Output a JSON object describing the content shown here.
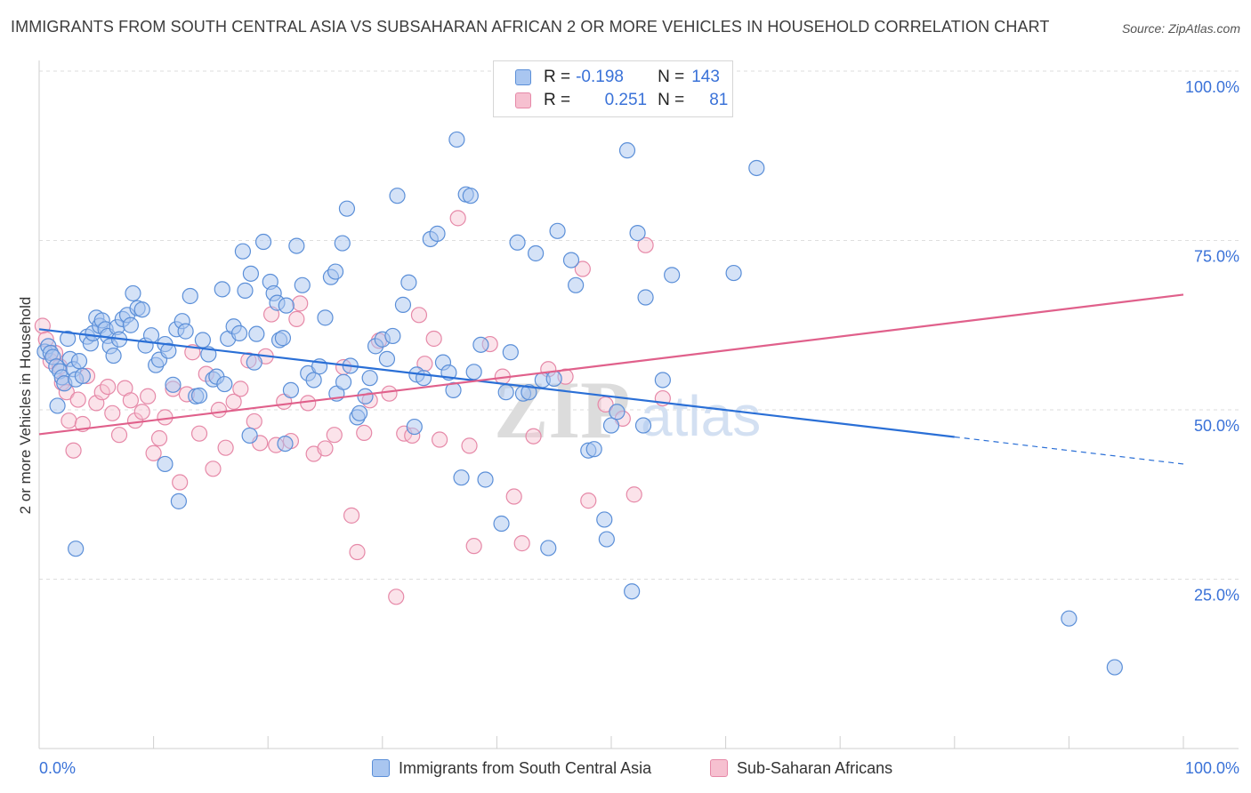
{
  "title": "IMMIGRANTS FROM SOUTH CENTRAL ASIA VS SUBSAHARAN AFRICAN 2 OR MORE VEHICLES IN HOUSEHOLD CORRELATION CHART",
  "source": "Source: ZipAtlas.com",
  "watermark": {
    "zip": "ZIP",
    "atlas": "atlas"
  },
  "legend_stats": {
    "r_label": "R =",
    "n_label": "N =",
    "rows": [
      {
        "r": "-0.198",
        "n": "143"
      },
      {
        "r": "0.251",
        "n": "81"
      }
    ]
  },
  "colors": {
    "blue_fill": "#a9c6f0",
    "blue_stroke": "#5b8fd8",
    "blue_line": "#2a6fd6",
    "pink_fill": "#f6c0d0",
    "pink_stroke": "#e689a8",
    "pink_line": "#e0608b",
    "axis_label": "#3a72d8"
  },
  "chart_data": {
    "type": "scatter",
    "title": "IMMIGRANTS FROM SOUTH CENTRAL ASIA VS SUBSAHARAN AFRICAN 2 OR MORE VEHICLES IN HOUSEHOLD CORRELATION CHART",
    "xlabel": "",
    "ylabel": "2 or more Vehicles in Household",
    "xlim": [
      0,
      100
    ],
    "ylim": [
      0,
      100
    ],
    "x_tick_labels": [
      "0.0%",
      "100.0%"
    ],
    "y_ticks": [
      25,
      50,
      75,
      100
    ],
    "y_tick_labels": [
      "25.0%",
      "50.0%",
      "75.0%",
      "100.0%"
    ],
    "grid": "horizontal dashed",
    "legend": "bottom-center",
    "series": [
      {
        "name": "Immigrants from South Central Asia",
        "r": -0.198,
        "n": 143,
        "trend": {
          "x0": 0,
          "y0": 61.9,
          "x1": 80,
          "y1": 46.0,
          "dashed_to_x": 100,
          "dashed_to_y": 42.0
        },
        "points": [
          [
            0.5,
            58.6
          ],
          [
            0.8,
            59.4
          ],
          [
            1,
            58.4
          ],
          [
            1.2,
            57.8
          ],
          [
            1.5,
            56.4
          ],
          [
            1.8,
            55.7
          ],
          [
            2,
            54.8
          ],
          [
            2.2,
            53.9
          ],
          [
            1.6,
            50.6
          ],
          [
            2.5,
            60.5
          ],
          [
            2.7,
            57.5
          ],
          [
            3,
            56
          ],
          [
            3.2,
            54.5
          ],
          [
            3.5,
            57.2
          ],
          [
            3.8,
            55
          ],
          [
            4.2,
            60.8
          ],
          [
            4.5,
            59.8
          ],
          [
            4.7,
            61.3
          ],
          [
            5,
            63.6
          ],
          [
            5.3,
            62.4
          ],
          [
            5.5,
            63.2
          ],
          [
            5.8,
            61.9
          ],
          [
            6,
            60.9
          ],
          [
            6.2,
            59.4
          ],
          [
            6.5,
            58
          ],
          [
            6.8,
            62.2
          ],
          [
            7,
            60.4
          ],
          [
            7.3,
            63.4
          ],
          [
            7.7,
            64
          ],
          [
            8,
            62.5
          ],
          [
            8.2,
            67.2
          ],
          [
            8.6,
            65
          ],
          [
            9,
            64.8
          ],
          [
            9.3,
            59.5
          ],
          [
            9.8,
            61
          ],
          [
            10.2,
            56.6
          ],
          [
            10.5,
            57.4
          ],
          [
            11,
            59.7
          ],
          [
            11.3,
            58.7
          ],
          [
            11.7,
            53.7
          ],
          [
            12,
            61.9
          ],
          [
            12.5,
            63.1
          ],
          [
            12.8,
            61.6
          ],
          [
            13.2,
            66.8
          ],
          [
            13.7,
            52
          ],
          [
            14,
            52.1
          ],
          [
            14.3,
            60.3
          ],
          [
            14.8,
            58.2
          ],
          [
            15.2,
            54.5
          ],
          [
            15.5,
            54.9
          ],
          [
            16,
            67.8
          ],
          [
            16.2,
            53.8
          ],
          [
            16.5,
            60.5
          ],
          [
            17,
            62.3
          ],
          [
            17.5,
            61.3
          ],
          [
            17.8,
            73.4
          ],
          [
            18,
            67.6
          ],
          [
            18.5,
            70.1
          ],
          [
            18.8,
            57
          ],
          [
            19,
            61.2
          ],
          [
            19.6,
            74.8
          ],
          [
            20.2,
            68.9
          ],
          [
            20.5,
            67.2
          ],
          [
            20.8,
            65.8
          ],
          [
            21,
            60.3
          ],
          [
            21.3,
            60.6
          ],
          [
            21.6,
            65.4
          ],
          [
            22,
            52.9
          ],
          [
            22.5,
            74.2
          ],
          [
            23,
            68.4
          ],
          [
            23.5,
            55.4
          ],
          [
            24,
            54.4
          ],
          [
            24.5,
            56.4
          ],
          [
            25,
            63.6
          ],
          [
            25.5,
            69.6
          ],
          [
            25.9,
            70.4
          ],
          [
            26,
            52.4
          ],
          [
            26.5,
            74.6
          ],
          [
            26.9,
            79.7
          ],
          [
            27.2,
            56.5
          ],
          [
            27.8,
            48.9
          ],
          [
            28,
            49.5
          ],
          [
            28.5,
            52
          ],
          [
            28.9,
            54.7
          ],
          [
            29.4,
            59.4
          ],
          [
            30,
            60.4
          ],
          [
            30.4,
            57.5
          ],
          [
            30.9,
            60.9
          ],
          [
            31.3,
            81.6
          ],
          [
            31.8,
            65.5
          ],
          [
            32.3,
            68.8
          ],
          [
            32.8,
            47.5
          ],
          [
            33,
            55.2
          ],
          [
            33.6,
            54.7
          ],
          [
            34.2,
            75.2
          ],
          [
            34.8,
            76
          ],
          [
            35.3,
            57
          ],
          [
            35.8,
            55.5
          ],
          [
            36.2,
            52.9
          ],
          [
            36.5,
            89.9
          ],
          [
            36.9,
            40
          ],
          [
            37.3,
            81.8
          ],
          [
            37.7,
            81.6
          ],
          [
            38,
            55.6
          ],
          [
            38.6,
            59.6
          ],
          [
            39,
            39.7
          ],
          [
            40.4,
            33.2
          ],
          [
            40.8,
            52.6
          ],
          [
            41.2,
            58.5
          ],
          [
            41.8,
            74.7
          ],
          [
            42.3,
            52.4
          ],
          [
            42.8,
            52.6
          ],
          [
            43.4,
            73.1
          ],
          [
            44,
            54.4
          ],
          [
            44.5,
            29.6
          ],
          [
            45,
            54.6
          ],
          [
            45.3,
            76.4
          ],
          [
            46.5,
            72.1
          ],
          [
            46.9,
            68.4
          ],
          [
            48,
            44
          ],
          [
            48.5,
            44.2
          ],
          [
            49.4,
            33.8
          ],
          [
            49.6,
            30.9
          ],
          [
            50,
            47.7
          ],
          [
            50.5,
            49.7
          ],
          [
            51.4,
            88.3
          ],
          [
            51.8,
            23.2
          ],
          [
            52.3,
            76.1
          ],
          [
            52.8,
            47.7
          ],
          [
            53,
            66.6
          ],
          [
            54.5,
            54.4
          ],
          [
            55.3,
            69.9
          ],
          [
            60.7,
            70.2
          ],
          [
            62.7,
            85.7
          ],
          [
            90,
            19.2
          ],
          [
            94,
            12
          ],
          [
            3.2,
            29.5
          ],
          [
            11,
            42
          ],
          [
            12.2,
            36.5
          ],
          [
            18.4,
            46.2
          ],
          [
            21.5,
            45
          ],
          [
            26.6,
            54.1
          ]
        ]
      },
      {
        "name": "Sub-Saharan Africans",
        "r": 0.251,
        "n": 81,
        "trend": {
          "x0": 0,
          "y0": 46.4,
          "x1": 100,
          "y1": 67.0
        },
        "points": [
          [
            0.3,
            62.4
          ],
          [
            0.6,
            60.4
          ],
          [
            1,
            57.2
          ],
          [
            1.4,
            58.4
          ],
          [
            1.8,
            56.4
          ],
          [
            2,
            54
          ],
          [
            2.4,
            52.6
          ],
          [
            2.6,
            48.4
          ],
          [
            3,
            44
          ],
          [
            3.4,
            51.5
          ],
          [
            3.8,
            47.9
          ],
          [
            4.2,
            55
          ],
          [
            5,
            51
          ],
          [
            5.5,
            52.6
          ],
          [
            6,
            53.4
          ],
          [
            6.4,
            49.5
          ],
          [
            7,
            46.3
          ],
          [
            7.5,
            53.2
          ],
          [
            8,
            51.4
          ],
          [
            8.4,
            48.4
          ],
          [
            9,
            49.7
          ],
          [
            9.5,
            52
          ],
          [
            10,
            43.6
          ],
          [
            10.5,
            45.8
          ],
          [
            11,
            48.9
          ],
          [
            11.7,
            53.1
          ],
          [
            12.3,
            39.3
          ],
          [
            12.9,
            52.3
          ],
          [
            13.4,
            58.5
          ],
          [
            14,
            46.5
          ],
          [
            14.6,
            55.3
          ],
          [
            15.2,
            41.3
          ],
          [
            15.7,
            50
          ],
          [
            16.3,
            44.4
          ],
          [
            17,
            51.2
          ],
          [
            17.6,
            53.1
          ],
          [
            18.3,
            57.3
          ],
          [
            18.8,
            48.3
          ],
          [
            19.3,
            45.1
          ],
          [
            19.8,
            57.9
          ],
          [
            20.3,
            64.1
          ],
          [
            20.7,
            44.8
          ],
          [
            21.4,
            51.2
          ],
          [
            22,
            45.4
          ],
          [
            22.5,
            63.4
          ],
          [
            22.8,
            65.7
          ],
          [
            23.5,
            51
          ],
          [
            24,
            43.5
          ],
          [
            25,
            44.3
          ],
          [
            25.8,
            46.3
          ],
          [
            26.6,
            56.3
          ],
          [
            27.3,
            34.4
          ],
          [
            27.8,
            29
          ],
          [
            28.4,
            46.6
          ],
          [
            28.9,
            51.4
          ],
          [
            29.7,
            60.2
          ],
          [
            30.6,
            52.4
          ],
          [
            31.2,
            22.4
          ],
          [
            31.9,
            46.5
          ],
          [
            32.6,
            46.2
          ],
          [
            33.2,
            64
          ],
          [
            33.7,
            56.8
          ],
          [
            34.5,
            60.5
          ],
          [
            35,
            45.6
          ],
          [
            36.6,
            78.3
          ],
          [
            37.6,
            44.7
          ],
          [
            38,
            29.9
          ],
          [
            39.4,
            59.7
          ],
          [
            40.5,
            54.9
          ],
          [
            41.5,
            37.2
          ],
          [
            42.2,
            30.3
          ],
          [
            43.2,
            46.1
          ],
          [
            44.5,
            56
          ],
          [
            46,
            54.9
          ],
          [
            47.5,
            70.8
          ],
          [
            48,
            36.6
          ],
          [
            49.5,
            50.8
          ],
          [
            51,
            48.7
          ],
          [
            52,
            37.5
          ],
          [
            53,
            74.3
          ],
          [
            54.5,
            51.7
          ]
        ]
      }
    ]
  },
  "bottom_legend": [
    {
      "label": "Immigrants from South Central Asia"
    },
    {
      "label": "Sub-Saharan Africans"
    }
  ]
}
